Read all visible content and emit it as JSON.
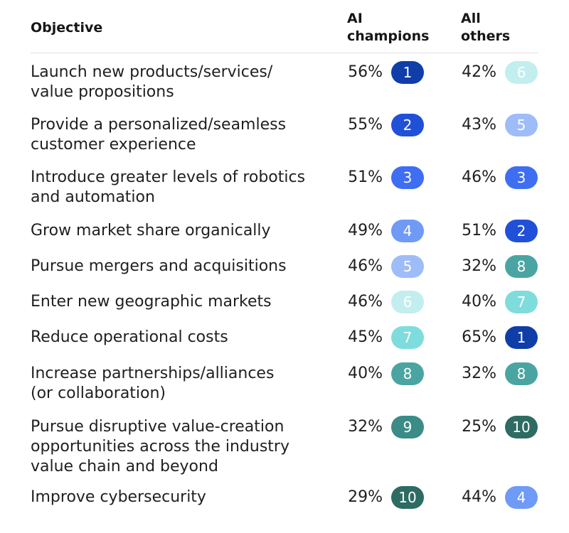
{
  "headers": {
    "objective": "Objective",
    "ai_line1": "AI",
    "ai_line2": "champions",
    "others_line1": "All",
    "others_line2": "others"
  },
  "rank_colors": {
    "1": "#0f3ea8",
    "2": "#2150d8",
    "3": "#3e6ef2",
    "4": "#6f9af6",
    "5": "#9ebcf7",
    "6": "#c2eeef",
    "7": "#7fdcdc",
    "8": "#4aa5a2",
    "9": "#3b8b86",
    "10": "#2d6b63"
  },
  "chart_data": {
    "type": "table",
    "columns": [
      "Objective",
      "AI champions",
      "All others"
    ],
    "rows": [
      {
        "objective": [
          "Launch new products/services/",
          "value propositions"
        ],
        "ai_pct": "56%",
        "ai_rank": 1,
        "oth_pct": "42%",
        "oth_rank": 6
      },
      {
        "objective": [
          "Provide a personalized/seamless",
          "customer experience"
        ],
        "ai_pct": "55%",
        "ai_rank": 2,
        "oth_pct": "43%",
        "oth_rank": 5
      },
      {
        "objective": [
          "Introduce greater levels of robotics",
          "and automation"
        ],
        "ai_pct": "51%",
        "ai_rank": 3,
        "oth_pct": "46%",
        "oth_rank": 3
      },
      {
        "objective": [
          "Grow market share organically"
        ],
        "ai_pct": "49%",
        "ai_rank": 4,
        "oth_pct": "51%",
        "oth_rank": 2
      },
      {
        "objective": [
          "Pursue mergers and acquisitions"
        ],
        "ai_pct": "46%",
        "ai_rank": 5,
        "oth_pct": "32%",
        "oth_rank": 8
      },
      {
        "objective": [
          "Enter new geographic markets"
        ],
        "ai_pct": "46%",
        "ai_rank": 6,
        "oth_pct": "40%",
        "oth_rank": 7
      },
      {
        "objective": [
          "Reduce operational costs"
        ],
        "ai_pct": "45%",
        "ai_rank": 7,
        "oth_pct": "65%",
        "oth_rank": 1
      },
      {
        "objective": [
          "Increase partnerships/alliances",
          "(or collaboration)"
        ],
        "ai_pct": "40%",
        "ai_rank": 8,
        "oth_pct": "32%",
        "oth_rank": 8
      },
      {
        "objective": [
          "Pursue disruptive value-creation",
          "opportunities across the industry",
          "value chain and beyond"
        ],
        "ai_pct": "32%",
        "ai_rank": 9,
        "oth_pct": "25%",
        "oth_rank": 10
      },
      {
        "objective": [
          "Improve cybersecurity"
        ],
        "ai_pct": "29%",
        "ai_rank": 10,
        "oth_pct": "44%",
        "oth_rank": 4
      }
    ]
  }
}
